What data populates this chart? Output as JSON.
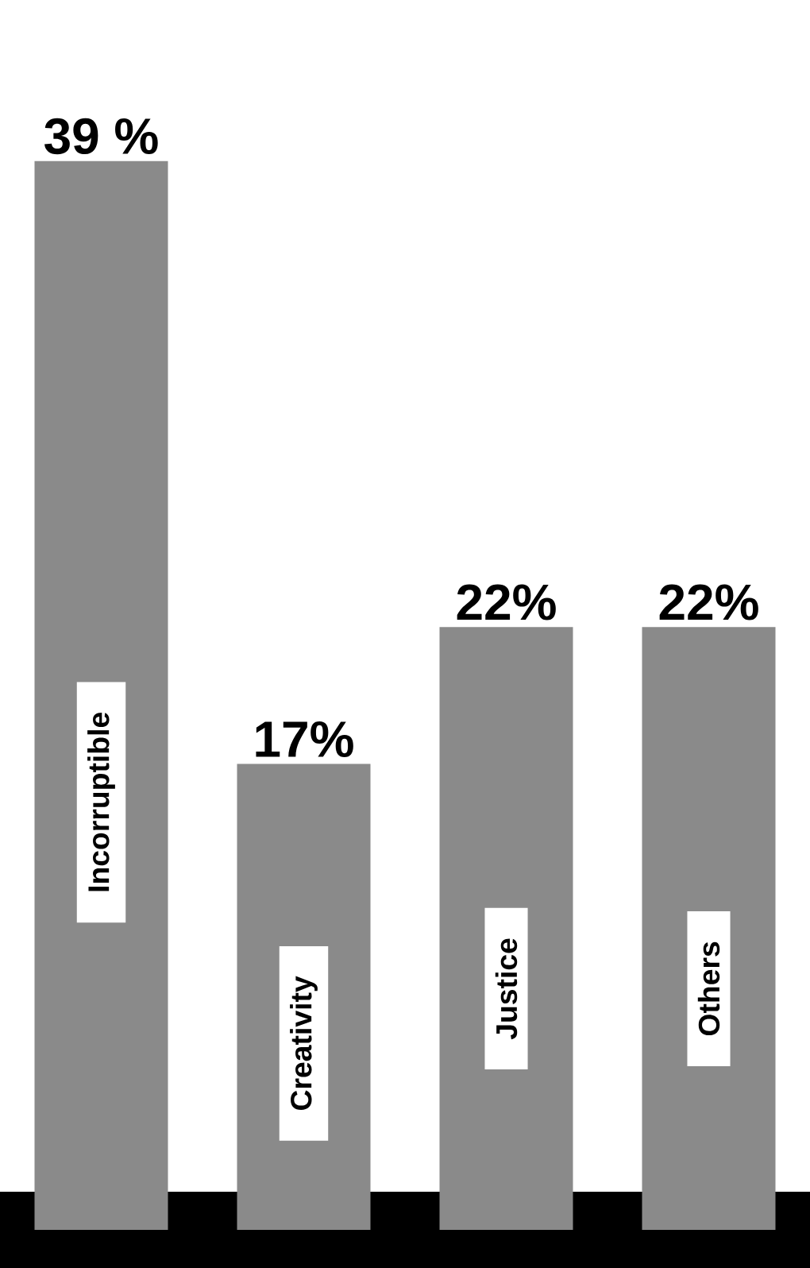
{
  "chart_data": {
    "type": "bar",
    "categories": [
      "Incorruptible",
      "Creativity",
      "Justice",
      "Others"
    ],
    "values": [
      39,
      17,
      22,
      22
    ],
    "value_labels": [
      "39 %",
      "17%",
      "22%",
      "22%"
    ],
    "color": "#8a8a8a"
  }
}
